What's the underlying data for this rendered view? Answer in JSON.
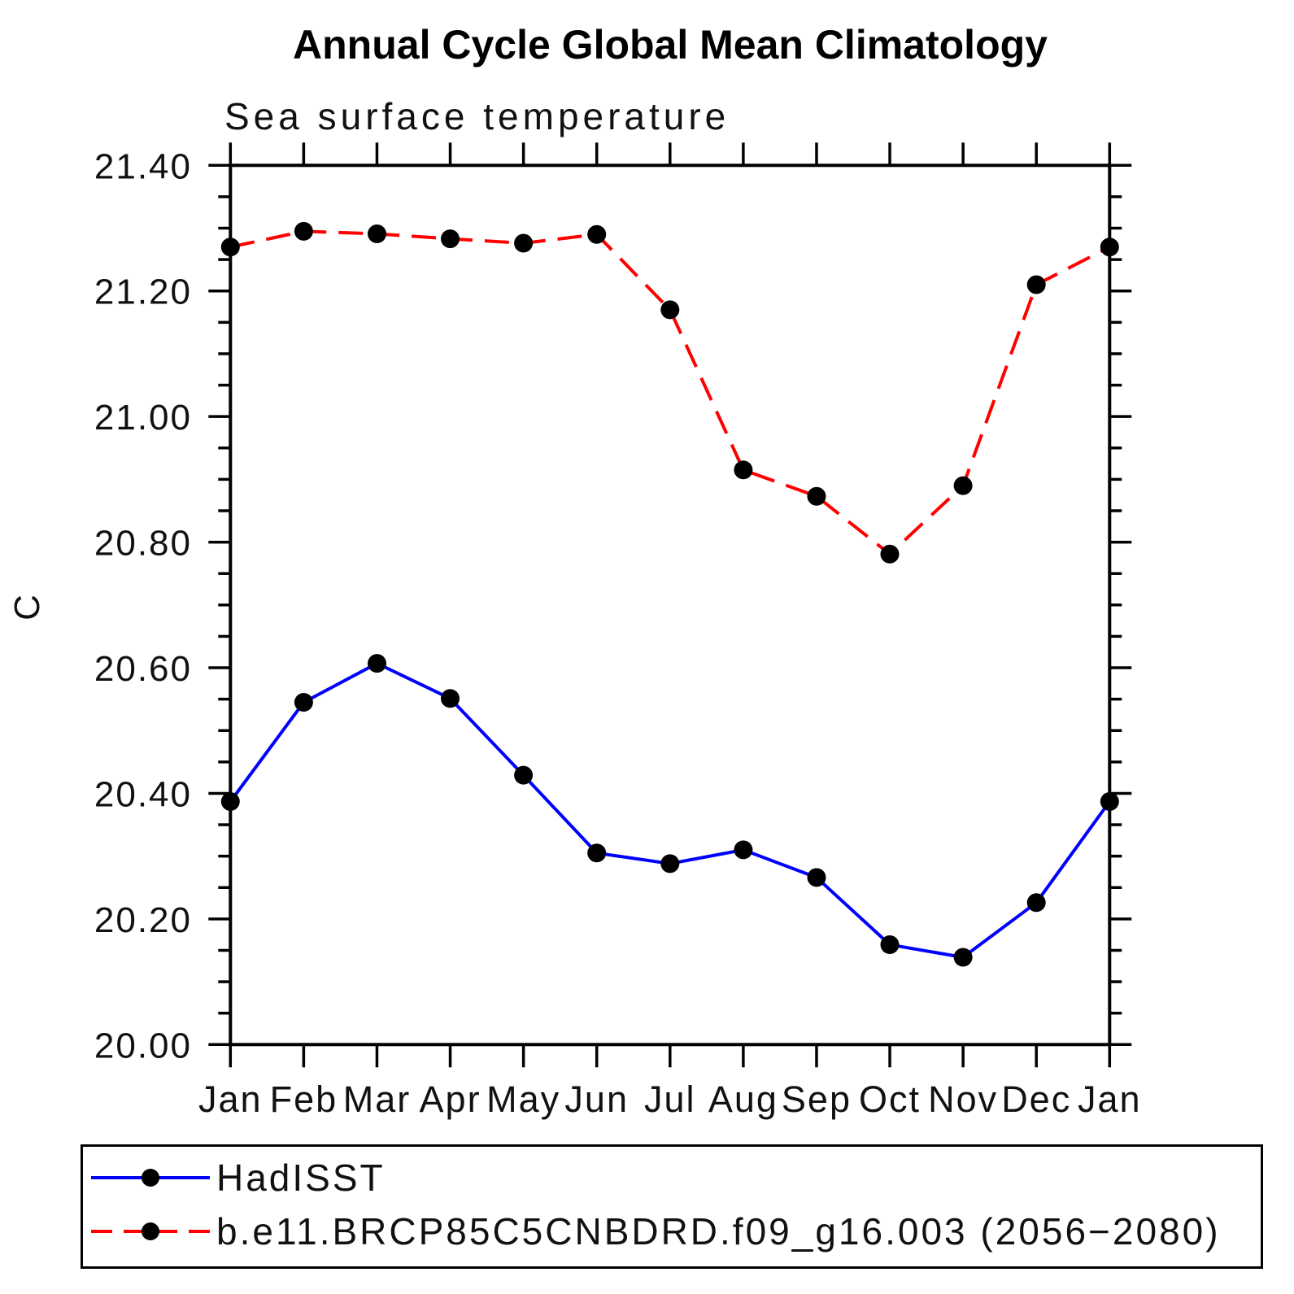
{
  "title": "Annual Cycle Global Mean Climatology",
  "subtitle": "Sea surface temperature",
  "y_axis_label": "C",
  "chart_data": {
    "type": "line",
    "title": "Annual Cycle Global Mean Climatology",
    "subtitle": "Sea surface temperature",
    "ylabel": "C",
    "xlabel": "",
    "x_categories": [
      "Jan",
      "Feb",
      "Mar",
      "Apr",
      "May",
      "Jun",
      "Jul",
      "Aug",
      "Sep",
      "Oct",
      "Nov",
      "Dec",
      "Jan"
    ],
    "ylim": [
      20.0,
      21.4
    ],
    "ytick_major_interval": 0.2,
    "ytick_minor_interval": 0.05,
    "ytick_labels": [
      "20.00",
      "20.20",
      "20.40",
      "20.60",
      "20.80",
      "21.00",
      "21.20",
      "21.40"
    ],
    "grid": false,
    "legend_position": "bottom",
    "marker_color": "#000000",
    "frame_color": "#000000",
    "series": [
      {
        "name": "HadISST",
        "color": "#0000ff",
        "style": "solid",
        "marker": "filled-circle",
        "values": [
          20.387,
          20.545,
          20.607,
          20.551,
          20.429,
          20.305,
          20.288,
          20.31,
          20.266,
          20.159,
          20.139,
          20.226,
          20.387
        ]
      },
      {
        "name": "b.e11.BRCP85C5CNBDRD.f09_g16.003 (2056−2080)",
        "color": "#ff0000",
        "style": "dashed",
        "marker": "filled-circle",
        "values": [
          21.27,
          21.295,
          21.291,
          21.283,
          21.276,
          21.29,
          21.17,
          20.915,
          20.873,
          20.781,
          20.89,
          21.21,
          21.27
        ]
      }
    ]
  }
}
